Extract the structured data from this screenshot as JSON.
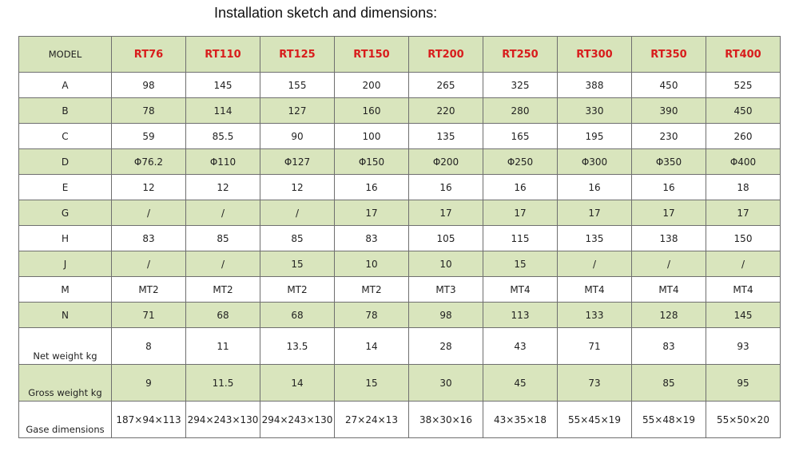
{
  "title": "Installation sketch and dimensions:",
  "table": {
    "header_label": "MODEL",
    "models": [
      "RT76",
      "RT110",
      "RT125",
      "RT150",
      "RT200",
      "RT250",
      "RT300",
      "RT350",
      "RT400"
    ],
    "rows": [
      {
        "label": "A",
        "values": [
          "98",
          "145",
          "155",
          "200",
          "265",
          "325",
          "388",
          "450",
          "525"
        ]
      },
      {
        "label": "B",
        "values": [
          "78",
          "114",
          "127",
          "160",
          "220",
          "280",
          "330",
          "390",
          "450"
        ]
      },
      {
        "label": "C",
        "values": [
          "59",
          "85.5",
          "90",
          "100",
          "135",
          "165",
          "195",
          "230",
          "260"
        ]
      },
      {
        "label": "D",
        "values": [
          "Φ76.2",
          "Φ110",
          "Φ127",
          "Φ150",
          "Φ200",
          "Φ250",
          "Φ300",
          "Φ350",
          "Φ400"
        ]
      },
      {
        "label": "E",
        "values": [
          "12",
          "12",
          "12",
          "16",
          "16",
          "16",
          "16",
          "16",
          "18"
        ]
      },
      {
        "label": "G",
        "values": [
          "/",
          "/",
          "/",
          "17",
          "17",
          "17",
          "17",
          "17",
          "17"
        ]
      },
      {
        "label": "H",
        "values": [
          "83",
          "85",
          "85",
          "83",
          "105",
          "115",
          "135",
          "138",
          "150"
        ]
      },
      {
        "label": "J",
        "values": [
          "/",
          "/",
          "15",
          "10",
          "10",
          "15",
          "/",
          "/",
          "/"
        ]
      },
      {
        "label": "M",
        "values": [
          "MT2",
          "MT2",
          "MT2",
          "MT2",
          "MT3",
          "MT4",
          "MT4",
          "MT4",
          "MT4"
        ]
      },
      {
        "label": "N",
        "values": [
          "71",
          "68",
          "68",
          "78",
          "98",
          "113",
          "133",
          "128",
          "145"
        ]
      },
      {
        "label": "Net weight kg",
        "values": [
          "8",
          "11",
          "13.5",
          "14",
          "28",
          "43",
          "71",
          "83",
          "93"
        ]
      },
      {
        "label": "Gross weight kg",
        "values": [
          "9",
          "11.5",
          "14",
          "15",
          "30",
          "45",
          "73",
          "85",
          "95"
        ]
      },
      {
        "label": "Gase dimensions",
        "values": [
          "187×94×113",
          "294×243×130",
          "294×243×130",
          "27×24×13",
          "38×30×16",
          "43×35×18",
          "55×45×19",
          "55×48×19",
          "55×50×20"
        ]
      }
    ]
  },
  "colors": {
    "row_green": "#d9e5bd",
    "model_red": "#d81c1c"
  }
}
